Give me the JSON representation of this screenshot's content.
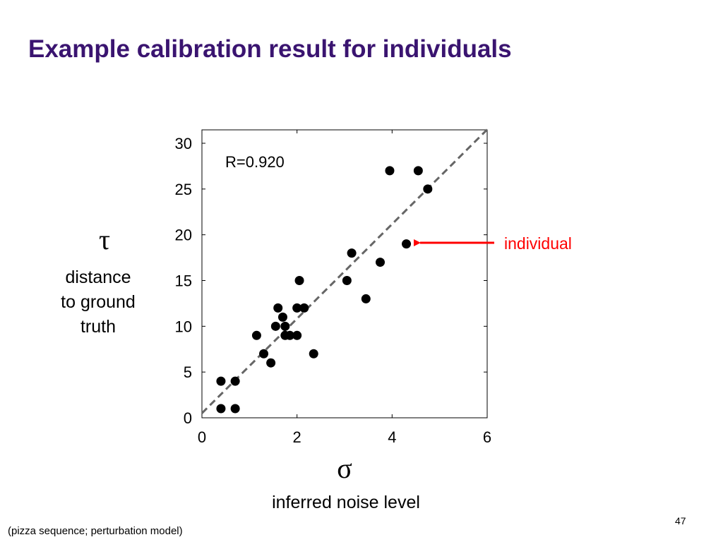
{
  "slide": {
    "title": "Example calibration result for individuals",
    "y_symbol": "τ",
    "y_description": [
      "distance",
      "to ground",
      "truth"
    ],
    "x_symbol": "σ",
    "x_description": "inferred noise level",
    "page_number": "47",
    "footnote": "(pizza sequence; perturbation model)"
  },
  "chart_data": {
    "type": "scatter",
    "title": "",
    "xlabel": "σ",
    "ylabel": "τ",
    "xlim": [
      0,
      6
    ],
    "ylim": [
      0,
      31.5
    ],
    "xticks": [
      0,
      2,
      4,
      6
    ],
    "yticks": [
      0,
      5,
      10,
      15,
      20,
      25,
      30
    ],
    "grid": false,
    "annotation": "R=0.920",
    "callout": "individual",
    "callout_color": "#ff0000",
    "marker_color": "#000000",
    "fit_line": {
      "style": "dashed",
      "color": "#666666",
      "from": [
        0,
        0.5
      ],
      "to": [
        6,
        31.5
      ]
    },
    "points": [
      {
        "x": 0.4,
        "y": 4
      },
      {
        "x": 0.7,
        "y": 4
      },
      {
        "x": 0.4,
        "y": 1
      },
      {
        "x": 0.7,
        "y": 1
      },
      {
        "x": 1.15,
        "y": 9
      },
      {
        "x": 1.3,
        "y": 7
      },
      {
        "x": 1.45,
        "y": 6
      },
      {
        "x": 1.55,
        "y": 10
      },
      {
        "x": 1.6,
        "y": 12
      },
      {
        "x": 1.7,
        "y": 11
      },
      {
        "x": 1.75,
        "y": 10
      },
      {
        "x": 1.75,
        "y": 9
      },
      {
        "x": 1.85,
        "y": 9
      },
      {
        "x": 2.0,
        "y": 9
      },
      {
        "x": 2.0,
        "y": 12
      },
      {
        "x": 2.05,
        "y": 15
      },
      {
        "x": 2.15,
        "y": 12
      },
      {
        "x": 2.35,
        "y": 7
      },
      {
        "x": 3.05,
        "y": 15
      },
      {
        "x": 3.15,
        "y": 18
      },
      {
        "x": 3.45,
        "y": 13
      },
      {
        "x": 3.75,
        "y": 17
      },
      {
        "x": 3.95,
        "y": 27
      },
      {
        "x": 4.3,
        "y": 19
      },
      {
        "x": 4.55,
        "y": 27
      },
      {
        "x": 4.75,
        "y": 25
      }
    ],
    "highlight_point": {
      "x": 4.3,
      "y": 19
    }
  }
}
